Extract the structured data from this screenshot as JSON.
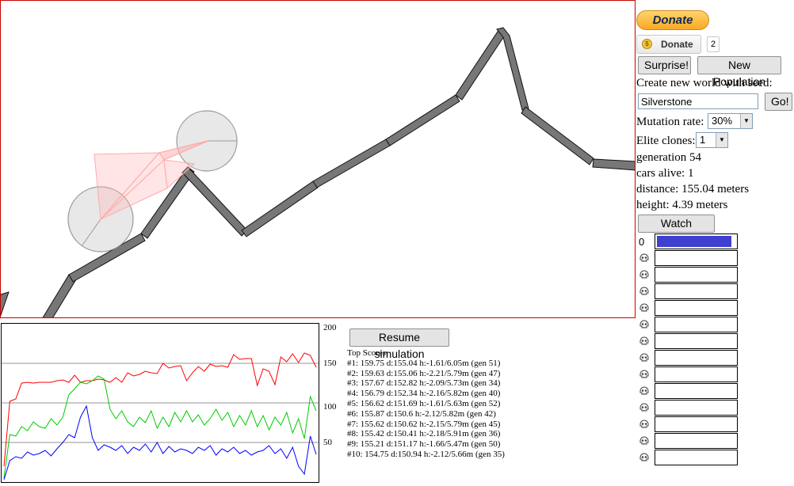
{
  "donate": {
    "paypal_label": "Donate",
    "like_label": "Donate",
    "like_count": "2",
    "coin_symbol": "$"
  },
  "controls": {
    "surprise_label": "Surprise!",
    "new_population_label": "New Population",
    "seed_prompt": "Create new world with seed:",
    "seed_value": "Silverstone",
    "go_label": "Go!",
    "mutation_label": "Mutation rate:",
    "mutation_value": "30%",
    "elite_label": "Elite clones:",
    "elite_value": "1",
    "watch_leader_label": "Watch Leader"
  },
  "stats": {
    "generation": "generation 54",
    "cars_alive": "cars alive: 1",
    "distance": "distance: 155.04 meters",
    "height": "height: 4.39 meters"
  },
  "leaderboard": {
    "first_label": "0",
    "first_progress": 0.95,
    "rows": 14,
    "skull_icon": "skull-icon"
  },
  "graph": {
    "y_labels": [
      "200",
      "150",
      "100",
      "50"
    ],
    "resume_label": "Resume simulation",
    "scores_title": "Top Scores:",
    "scores": [
      "#1: 159.75 d:155.04 h:-1.61/6.05m (gen 51)",
      "#2: 159.63 d:155.06 h:-2.21/5.79m (gen 47)",
      "#3: 157.67 d:152.82 h:-2.09/5.73m (gen 34)",
      "#4: 156.79 d:152.34 h:-2.16/5.82m (gen 40)",
      "#5: 156.62 d:151.69 h:-1.61/5.63m (gen 52)",
      "#6: 155.87 d:150.6 h:-2.12/5.82m (gen 42)",
      "#7: 155.62 d:150.62 h:-2.15/5.79m (gen 45)",
      "#8: 155.42 d:150.41 h:-2.18/5.91m (gen 36)",
      "#9: 155.21 d:151.17 h:-1.66/5.47m (gen 50)",
      "#10: 154.75 d:150.94 h:-2.12/5.66m (gen 35)"
    ]
  },
  "chart_data": {
    "type": "line",
    "ylim": [
      0,
      200
    ],
    "grid": true,
    "x": [
      1,
      2,
      3,
      4,
      5,
      6,
      7,
      8,
      9,
      10,
      11,
      12,
      13,
      14,
      15,
      16,
      17,
      18,
      19,
      20,
      21,
      22,
      23,
      24,
      25,
      26,
      27,
      28,
      29,
      30,
      31,
      32,
      33,
      34,
      35,
      36,
      37,
      38,
      39,
      40,
      41,
      42,
      43,
      44,
      45,
      46,
      47,
      48,
      49,
      50,
      51,
      52,
      53,
      54
    ],
    "series": [
      {
        "color": "#ff0000",
        "values": [
          20,
          102,
          105,
          125,
          126,
          125,
          126,
          126,
          126,
          128,
          129,
          126,
          135,
          126,
          128,
          128,
          130,
          129,
          126,
          132,
          126,
          138,
          134,
          136,
          140,
          138,
          137,
          150,
          144,
          146,
          147,
          128,
          138,
          146,
          140,
          149,
          146,
          147,
          145,
          161,
          155,
          156,
          156,
          122,
          143,
          140,
          123,
          158,
          152,
          162,
          151,
          163,
          160,
          145
        ]
      },
      {
        "color": "#00cc00",
        "values": [
          5,
          60,
          58,
          70,
          65,
          76,
          70,
          68,
          80,
          72,
          82,
          110,
          118,
          126,
          124,
          128,
          134,
          130,
          92,
          80,
          90,
          76,
          70,
          82,
          75,
          90,
          68,
          82,
          70,
          88,
          76,
          90,
          76,
          85,
          72,
          80,
          92,
          78,
          88,
          70,
          84,
          72,
          90,
          70,
          84,
          66,
          82,
          72,
          88,
          62,
          80,
          55,
          108,
          90
        ]
      },
      {
        "color": "#0000ff",
        "values": [
          3,
          27,
          32,
          30,
          38,
          34,
          36,
          40,
          33,
          42,
          50,
          60,
          56,
          82,
          96,
          56,
          40,
          47,
          44,
          40,
          46,
          36,
          44,
          40,
          48,
          38,
          50,
          36,
          45,
          38,
          42,
          40,
          36,
          44,
          40,
          46,
          34,
          42,
          38,
          44,
          36,
          40,
          34,
          38,
          40,
          46,
          36,
          42,
          30,
          44,
          20,
          10,
          58,
          35
        ]
      }
    ]
  }
}
